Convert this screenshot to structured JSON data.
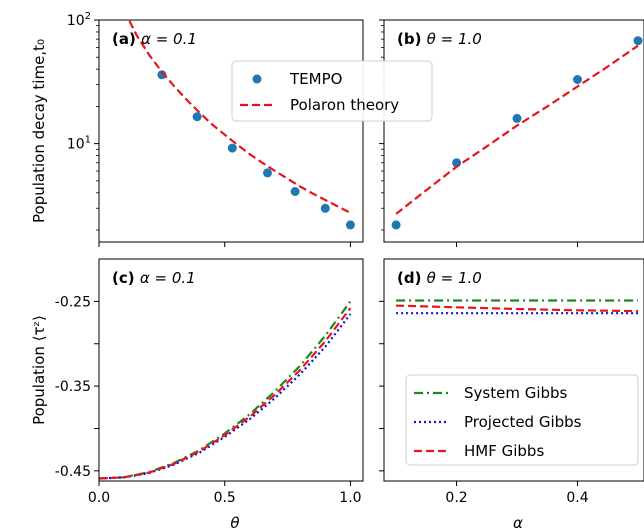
{
  "chart_data": [
    {
      "id": "a",
      "panel_label": "(a)",
      "title_param": "α = 0.1",
      "type": "scatter+line",
      "xlabel": "",
      "ylabel": "Population decay time,t₀",
      "y_scale": "log",
      "xlim": [
        0.0,
        1.05
      ],
      "ylim": [
        1.6,
        100
      ],
      "y_ticks": [
        {
          "value": 10,
          "label": "10¹"
        },
        {
          "value": 100,
          "label": "10²"
        }
      ],
      "x_ticks": [
        0.0,
        0.5,
        1.0
      ],
      "legend": {
        "placement": "upper-center",
        "entries": [
          "TEMPO",
          "Polaron theory"
        ]
      },
      "series": [
        {
          "name": "TEMPO",
          "kind": "scatter",
          "color": "#1f77b4",
          "points": [
            [
              0.25,
              36
            ],
            [
              0.39,
              16.5
            ],
            [
              0.53,
              9.2
            ],
            [
              0.67,
              5.8
            ],
            [
              0.78,
              4.1
            ],
            [
              0.9,
              3.0
            ],
            [
              1.0,
              2.2
            ]
          ]
        },
        {
          "name": "Polaron theory",
          "kind": "dashed",
          "color": "#e8141c",
          "points": [
            [
              0.1,
              120
            ],
            [
              0.15,
              75
            ],
            [
              0.2,
              52
            ],
            [
              0.25,
              38
            ],
            [
              0.3,
              29
            ],
            [
              0.35,
              22.5
            ],
            [
              0.4,
              17.8
            ],
            [
              0.45,
              14.3
            ],
            [
              0.5,
              11.8
            ],
            [
              0.55,
              9.8
            ],
            [
              0.6,
              8.2
            ],
            [
              0.65,
              7.0
            ],
            [
              0.7,
              6.0
            ],
            [
              0.75,
              5.2
            ],
            [
              0.8,
              4.5
            ],
            [
              0.85,
              3.95
            ],
            [
              0.9,
              3.5
            ],
            [
              0.95,
              3.1
            ],
            [
              1.0,
              2.75
            ]
          ]
        }
      ]
    },
    {
      "id": "b",
      "panel_label": "(b)",
      "title_param": "θ = 1.0",
      "type": "scatter+line",
      "xlabel": "",
      "ylabel": "",
      "y_scale": "log",
      "xlim": [
        0.08,
        0.51
      ],
      "ylim": [
        1.6,
        100
      ],
      "x_ticks": [
        0.2,
        0.4
      ],
      "series": [
        {
          "name": "TEMPO",
          "kind": "scatter",
          "color": "#1f77b4",
          "points": [
            [
              0.1,
              2.2
            ],
            [
              0.2,
              7.0
            ],
            [
              0.3,
              16.0
            ],
            [
              0.4,
              33.0
            ],
            [
              0.5,
              68.0
            ]
          ]
        },
        {
          "name": "Polaron theory",
          "kind": "dashed",
          "color": "#e8141c",
          "points": [
            [
              0.1,
              2.7
            ],
            [
              0.15,
              4.2
            ],
            [
              0.2,
              6.5
            ],
            [
              0.25,
              9.5
            ],
            [
              0.3,
              14.0
            ],
            [
              0.35,
              20.0
            ],
            [
              0.4,
              29.0
            ],
            [
              0.45,
              42.0
            ],
            [
              0.5,
              62.0
            ]
          ]
        }
      ]
    },
    {
      "id": "c",
      "panel_label": "(c)",
      "title_param": "α = 0.1",
      "type": "line",
      "xlabel": "θ",
      "ylabel": "Population ⟨τᶻ⟩",
      "xlim": [
        0.0,
        1.05
      ],
      "ylim": [
        -0.462,
        -0.2
      ],
      "y_ticks": [
        {
          "value": -0.25,
          "label": "-0.25"
        },
        {
          "value": -0.35,
          "label": "-0.35"
        },
        {
          "value": -0.45,
          "label": "-0.45"
        }
      ],
      "x_ticks": [
        {
          "value": 0.0,
          "label": "0.0"
        },
        {
          "value": 0.5,
          "label": "0.5"
        },
        {
          "value": 1.0,
          "label": "1.0"
        }
      ],
      "series": [
        {
          "name": "System Gibbs",
          "kind": "dashdot",
          "color": "#1a8a1a",
          "points": [
            [
              0.0,
              -0.459
            ],
            [
              0.1,
              -0.4575
            ],
            [
              0.2,
              -0.4515
            ],
            [
              0.3,
              -0.4405
            ],
            [
              0.4,
              -0.4255
            ],
            [
              0.5,
              -0.406
            ],
            [
              0.6,
              -0.383
            ],
            [
              0.7,
              -0.356
            ],
            [
              0.8,
              -0.326
            ],
            [
              0.9,
              -0.2905
            ],
            [
              1.0,
              -0.25
            ]
          ]
        },
        {
          "name": "Projected Gibbs",
          "kind": "dotted",
          "color": "#1010e0",
          "points": [
            [
              0.0,
              -0.459
            ],
            [
              0.1,
              -0.4578
            ],
            [
              0.2,
              -0.4525
            ],
            [
              0.3,
              -0.4425
            ],
            [
              0.4,
              -0.4285
            ],
            [
              0.5,
              -0.41
            ],
            [
              0.6,
              -0.389
            ],
            [
              0.7,
              -0.364
            ],
            [
              0.8,
              -0.336
            ],
            [
              0.9,
              -0.3035
            ],
            [
              1.0,
              -0.265
            ]
          ]
        },
        {
          "name": "HMF Gibbs",
          "kind": "dashed",
          "color": "#e8141c",
          "points": [
            [
              0.0,
              -0.459
            ],
            [
              0.1,
              -0.4576
            ],
            [
              0.2,
              -0.452
            ],
            [
              0.3,
              -0.4415
            ],
            [
              0.4,
              -0.427
            ],
            [
              0.5,
              -0.408
            ],
            [
              0.6,
              -0.386
            ],
            [
              0.7,
              -0.36
            ],
            [
              0.8,
              -0.331
            ],
            [
              0.9,
              -0.297
            ],
            [
              1.0,
              -0.258
            ]
          ]
        }
      ]
    },
    {
      "id": "d",
      "panel_label": "(d)",
      "title_param": "θ = 1.0",
      "type": "line",
      "xlabel": "α",
      "ylabel": "",
      "xlim": [
        0.08,
        0.51
      ],
      "ylim": [
        -0.462,
        -0.2
      ],
      "x_ticks": [
        {
          "value": 0.2,
          "label": "0.2"
        },
        {
          "value": 0.4,
          "label": "0.4"
        }
      ],
      "legend": {
        "placement": "lower-center",
        "entries": [
          "System Gibbs",
          "Projected Gibbs",
          "HMF Gibbs"
        ]
      },
      "series": [
        {
          "name": "System Gibbs",
          "kind": "dashdot",
          "color": "#1a8a1a",
          "points": [
            [
              0.1,
              -0.249
            ],
            [
              0.5,
              -0.249
            ]
          ]
        },
        {
          "name": "Projected Gibbs",
          "kind": "dotted",
          "color": "#1010e0",
          "points": [
            [
              0.1,
              -0.264
            ],
            [
              0.5,
              -0.264
            ]
          ]
        },
        {
          "name": "HMF Gibbs",
          "kind": "dashed",
          "color": "#e8141c",
          "points": [
            [
              0.1,
              -0.255
            ],
            [
              0.2,
              -0.257
            ],
            [
              0.3,
              -0.259
            ],
            [
              0.4,
              -0.2605
            ],
            [
              0.5,
              -0.2615
            ]
          ]
        }
      ]
    }
  ]
}
